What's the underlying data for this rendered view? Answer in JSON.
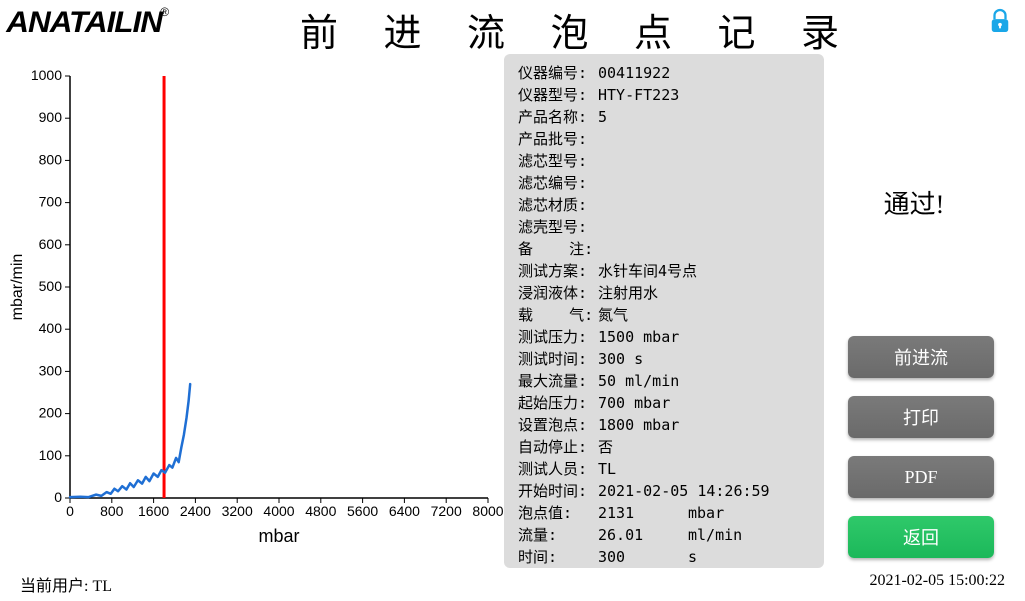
{
  "header": {
    "logo_text": "ANATAILIN",
    "title": "前 进 流 泡 点 记 录"
  },
  "chart": {
    "type": "line",
    "x_label": "mbar",
    "y_label": "mbar/min",
    "xlim": [
      0,
      8000
    ],
    "ylim": [
      0,
      1000
    ],
    "x_ticks": [
      0,
      800,
      1600,
      2400,
      3200,
      4000,
      4800,
      5600,
      6400,
      7200,
      8000
    ],
    "y_ticks": [
      0,
      100,
      200,
      300,
      400,
      500,
      600,
      700,
      800,
      900,
      1000
    ],
    "tick_fontsize": 14,
    "label_fontsize": 16,
    "background_color": "#ffffff",
    "axis_color": "#000000",
    "series": {
      "flow": {
        "color": "#1f6fd4",
        "line_width": 2.5,
        "points": [
          [
            0,
            2
          ],
          [
            200,
            3
          ],
          [
            350,
            2
          ],
          [
            500,
            8
          ],
          [
            600,
            5
          ],
          [
            700,
            14
          ],
          [
            780,
            10
          ],
          [
            850,
            22
          ],
          [
            920,
            16
          ],
          [
            1000,
            28
          ],
          [
            1080,
            20
          ],
          [
            1150,
            35
          ],
          [
            1220,
            26
          ],
          [
            1300,
            42
          ],
          [
            1380,
            34
          ],
          [
            1450,
            50
          ],
          [
            1520,
            40
          ],
          [
            1600,
            58
          ],
          [
            1680,
            50
          ],
          [
            1750,
            66
          ],
          [
            1820,
            60
          ],
          [
            1900,
            78
          ],
          [
            1960,
            72
          ],
          [
            2030,
            95
          ],
          [
            2080,
            85
          ],
          [
            2131,
            120
          ],
          [
            2180,
            150
          ],
          [
            2230,
            190
          ],
          [
            2270,
            230
          ],
          [
            2300,
            270
          ]
        ]
      },
      "threshold_line": {
        "type": "vline",
        "x": 1800,
        "color": "#ff0000",
        "line_width": 3,
        "y_range": [
          0,
          1000
        ]
      }
    }
  },
  "info": {
    "rows": [
      {
        "label": "仪器编号:",
        "value": "00411922"
      },
      {
        "label": "仪器型号:",
        "value": "HTY-FT223"
      },
      {
        "label": "产品名称:",
        "value": "5"
      },
      {
        "label": "产品批号:",
        "value": ""
      },
      {
        "label": "滤芯型号:",
        "value": ""
      },
      {
        "label": "滤芯编号:",
        "value": ""
      },
      {
        "label": "滤芯材质:",
        "value": ""
      },
      {
        "label": "滤壳型号:",
        "value": ""
      },
      {
        "label": "备    注:",
        "value": ""
      },
      {
        "label": "测试方案:",
        "value": "水针车间4号点"
      },
      {
        "label": "浸润液体:",
        "value": "注射用水"
      },
      {
        "label": "载    气:",
        "value": "氮气"
      },
      {
        "label": "测试压力:",
        "value": "1500 mbar"
      },
      {
        "label": "测试时间:",
        "value": "300 s"
      },
      {
        "label": "最大流量:",
        "value": "50 ml/min"
      },
      {
        "label": "起始压力:",
        "value": "700 mbar"
      },
      {
        "label": "设置泡点:",
        "value": "1800 mbar"
      },
      {
        "label": "自动停止:",
        "value": "否"
      },
      {
        "label": "测试人员:",
        "value": "TL"
      },
      {
        "label": "开始时间:",
        "value": "2021-02-05 14:26:59"
      }
    ],
    "results": [
      {
        "label": "泡点值:",
        "value": "2131",
        "unit": "mbar"
      },
      {
        "label": "流量:",
        "value": "26.01",
        "unit": "ml/min"
      },
      {
        "label": "时间:",
        "value": "300",
        "unit": "s"
      }
    ]
  },
  "status": {
    "pass_text": "通过!"
  },
  "buttons": {
    "forward_flow": "前进流",
    "print": "打印",
    "pdf": "PDF",
    "back": "返回"
  },
  "footer": {
    "user_label": "当前用户: ",
    "user_value": "TL",
    "datetime": "2021-02-05 15:00:22"
  },
  "colors": {
    "panel_bg": "#dcdcdc",
    "btn_gray_top": "#7a7a7a",
    "btn_gray_bottom": "#6a6a6a",
    "btn_green_top": "#2fc96a",
    "btn_green_bottom": "#1cb85a",
    "lock_body": "#1aa7e8"
  }
}
